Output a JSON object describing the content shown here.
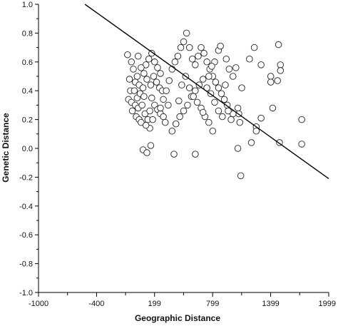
{
  "chart_data": {
    "type": "scatter",
    "xlabel": "Geographic Distance",
    "ylabel": "Genetic Distance",
    "xlim": [
      -1000,
      1999
    ],
    "ylim": [
      -1.0,
      1.0
    ],
    "x_ticks": [
      -1000,
      -400,
      199,
      799,
      1399,
      1999
    ],
    "x_tick_labels": [
      "-1000",
      "-400",
      "199",
      "799",
      "1399",
      "1999"
    ],
    "y_ticks": [
      1.0,
      0.8,
      0.6,
      0.4,
      0.2,
      0.0,
      -0.2,
      -0.4,
      -0.6,
      -0.8,
      -1.0
    ],
    "y_tick_labels": [
      "1.0",
      "0.8",
      "0.6",
      "0.4",
      "0.2",
      "0.0",
      "-0.2",
      "-0.4",
      "-0.6",
      "-0.8",
      "-1.0"
    ],
    "regression_line": {
      "x": [
        -520,
        1999
      ],
      "y": [
        1.0,
        -0.21
      ]
    },
    "grid": false,
    "marker": "open-circle",
    "points": [
      [
        -80,
        0.65
      ],
      [
        -40,
        0.6
      ],
      [
        -20,
        0.55
      ],
      [
        20,
        0.5
      ],
      [
        -60,
        0.48
      ],
      [
        0,
        0.46
      ],
      [
        40,
        0.44
      ],
      [
        80,
        0.42
      ],
      [
        -50,
        0.4
      ],
      [
        -70,
        0.34
      ],
      [
        -40,
        0.32
      ],
      [
        0,
        0.3
      ],
      [
        20,
        0.35
      ],
      [
        50,
        0.38
      ],
      [
        90,
        0.36
      ],
      [
        -30,
        0.26
      ],
      [
        10,
        0.22
      ],
      [
        40,
        0.2
      ],
      [
        60,
        0.18
      ],
      [
        100,
        0.24
      ],
      [
        130,
        0.2
      ],
      [
        150,
        0.26
      ],
      [
        30,
        0.28
      ],
      [
        70,
        0.3
      ],
      [
        -10,
        0.4
      ],
      [
        110,
        0.58
      ],
      [
        140,
        0.62
      ],
      [
        170,
        0.66
      ],
      [
        200,
        0.6
      ],
      [
        230,
        0.56
      ],
      [
        260,
        0.52
      ],
      [
        190,
        0.5
      ],
      [
        220,
        0.46
      ],
      [
        250,
        0.42
      ],
      [
        280,
        0.4
      ],
      [
        160,
        0.44
      ],
      [
        120,
        0.48
      ],
      [
        90,
        0.52
      ],
      [
        60,
        0.56
      ],
      [
        30,
        0.64
      ],
      [
        170,
        0.35
      ],
      [
        200,
        0.3
      ],
      [
        230,
        0.27
      ],
      [
        260,
        0.24
      ],
      [
        290,
        0.22
      ],
      [
        180,
        0.2
      ],
      [
        150,
        0.14
      ],
      [
        110,
        0.16
      ],
      [
        80,
        -0.01
      ],
      [
        120,
        -0.03
      ],
      [
        160,
        0.02
      ],
      [
        260,
        0.28
      ],
      [
        290,
        0.34
      ],
      [
        320,
        0.4
      ],
      [
        350,
        0.47
      ],
      [
        380,
        0.55
      ],
      [
        410,
        0.6
      ],
      [
        440,
        0.64
      ],
      [
        470,
        0.7
      ],
      [
        500,
        0.74
      ],
      [
        530,
        0.8
      ],
      [
        560,
        0.7
      ],
      [
        590,
        0.62
      ],
      [
        620,
        0.58
      ],
      [
        650,
        0.64
      ],
      [
        680,
        0.7
      ],
      [
        710,
        0.66
      ],
      [
        740,
        0.6
      ],
      [
        770,
        0.55
      ],
      [
        800,
        0.5
      ],
      [
        830,
        0.46
      ],
      [
        860,
        0.42
      ],
      [
        890,
        0.38
      ],
      [
        920,
        0.34
      ],
      [
        950,
        0.3
      ],
      [
        700,
        0.48
      ],
      [
        660,
        0.44
      ],
      [
        620,
        0.4
      ],
      [
        580,
        0.36
      ],
      [
        540,
        0.3
      ],
      [
        500,
        0.26
      ],
      [
        460,
        0.22
      ],
      [
        420,
        0.17
      ],
      [
        380,
        0.12
      ],
      [
        340,
        0.3
      ],
      [
        310,
        0.18
      ],
      [
        400,
        -0.04
      ],
      [
        450,
        0.33
      ],
      [
        480,
        0.44
      ],
      [
        520,
        0.5
      ],
      [
        560,
        0.42
      ],
      [
        600,
        0.36
      ],
      [
        640,
        0.32
      ],
      [
        680,
        0.28
      ],
      [
        720,
        0.22
      ],
      [
        760,
        0.18
      ],
      [
        800,
        0.12
      ],
      [
        620,
        -0.04
      ],
      [
        700,
        0.25
      ],
      [
        740,
        0.42
      ],
      [
        780,
        0.38
      ],
      [
        820,
        0.32
      ],
      [
        860,
        0.26
      ],
      [
        900,
        0.22
      ],
      [
        860,
        0.68
      ],
      [
        880,
        0.71
      ],
      [
        820,
        0.6
      ],
      [
        790,
        0.57
      ],
      [
        760,
        0.5
      ],
      [
        940,
        0.62
      ],
      [
        970,
        0.55
      ],
      [
        1010,
        0.5
      ],
      [
        1040,
        0.56
      ],
      [
        1060,
        0.28
      ],
      [
        1070,
        0.24
      ],
      [
        1080,
        0.18
      ],
      [
        1100,
        0.42
      ],
      [
        1010,
        0.24
      ],
      [
        1060,
        0.0
      ],
      [
        1090,
        -0.19
      ],
      [
        1180,
        0.62
      ],
      [
        1200,
        0.04
      ],
      [
        1250,
        0.15
      ],
      [
        1250,
        0.12
      ],
      [
        1230,
        0.7
      ],
      [
        1300,
        0.58
      ],
      [
        1300,
        0.21
      ],
      [
        1400,
        0.5
      ],
      [
        1400,
        0.46
      ],
      [
        1420,
        0.28
      ],
      [
        1470,
        0.47
      ],
      [
        1480,
        0.72
      ],
      [
        1500,
        0.58
      ],
      [
        1500,
        0.54
      ],
      [
        1490,
        0.04
      ],
      [
        1720,
        0.2
      ],
      [
        1720,
        0.03
      ],
      [
        930,
        0.44
      ],
      [
        960,
        0.26
      ],
      [
        990,
        0.2
      ]
    ]
  }
}
